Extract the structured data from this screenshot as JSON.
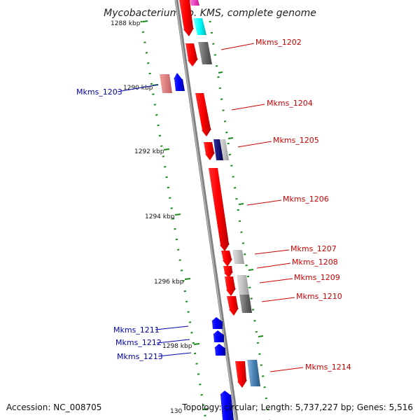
{
  "title": "Mycobacterium sp. KMS, complete genome",
  "ticks": [
    "1288 kbp",
    "1290 kbp",
    "1292 kbp",
    "1294 kbp",
    "1296 kbp",
    "1298 kbp",
    "130"
  ],
  "genes": {
    "mkms_1202": "Mkms_1202",
    "mkms_1203": "Mkms_1203",
    "mkms_1204": "Mkms_1204",
    "mkms_1205": "Mkms_1205",
    "mkms_1206": "Mkms_1206",
    "mkms_1207": "Mkms_1207",
    "mkms_1208": "Mkms_1208",
    "mkms_1209": "Mkms_1209",
    "mkms_1210": "Mkms_1210",
    "mkms_1211": "Mkms_1211",
    "mkms_1212": "Mkms_1212",
    "mkms_1213": "Mkms_1213",
    "mkms_1214": "Mkms_1214"
  },
  "footer": {
    "accession": "Accession: NC_008705",
    "topology": "Topology: circular; Length: 5,737,227 bp; Genes: 5,516"
  },
  "colors": {
    "forward": "#ff0000",
    "reverse": "#0000ff",
    "backbone": "#808080",
    "ruler": "#1a8a1a",
    "cyan": "#00ffff",
    "magenta": "#ff33cc",
    "pink": "#e88080",
    "navy": "#000080",
    "steel": "#4682b4",
    "gray_dark": "#666666",
    "gray_light": "#bbbbbb"
  }
}
